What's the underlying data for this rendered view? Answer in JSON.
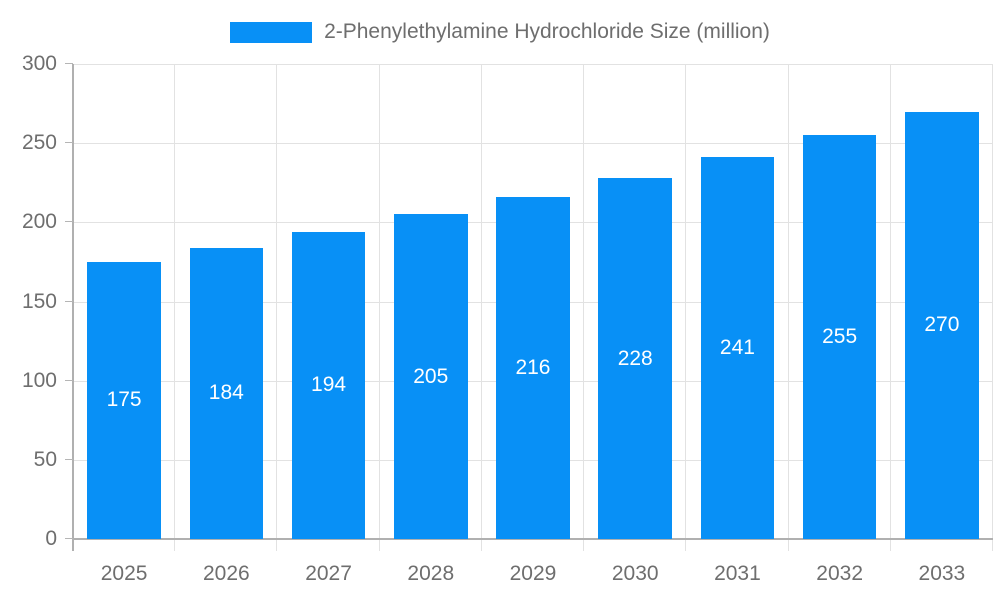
{
  "legend": {
    "label": "2-Phenylethylamine Hydrochloride Size (million)",
    "swatch_color": "#0890f6"
  },
  "chart_data": {
    "type": "bar",
    "title": "2-Phenylethylamine Hydrochloride Size (million)",
    "categories": [
      "2025",
      "2026",
      "2027",
      "2028",
      "2029",
      "2030",
      "2031",
      "2032",
      "2033"
    ],
    "values": [
      175,
      184,
      194,
      205,
      216,
      228,
      241,
      255,
      270
    ],
    "xlabel": "",
    "ylabel": "",
    "ylim": [
      0,
      300
    ],
    "yticks": [
      0,
      50,
      100,
      150,
      200,
      250,
      300
    ],
    "grid": true,
    "legend_position": "top",
    "colors": {
      "bar": "#0890f6",
      "value_label": "#ffffff",
      "grid": "#e2e2e2",
      "axis": "#b0b0b0",
      "text": "#6e6e6e"
    }
  }
}
